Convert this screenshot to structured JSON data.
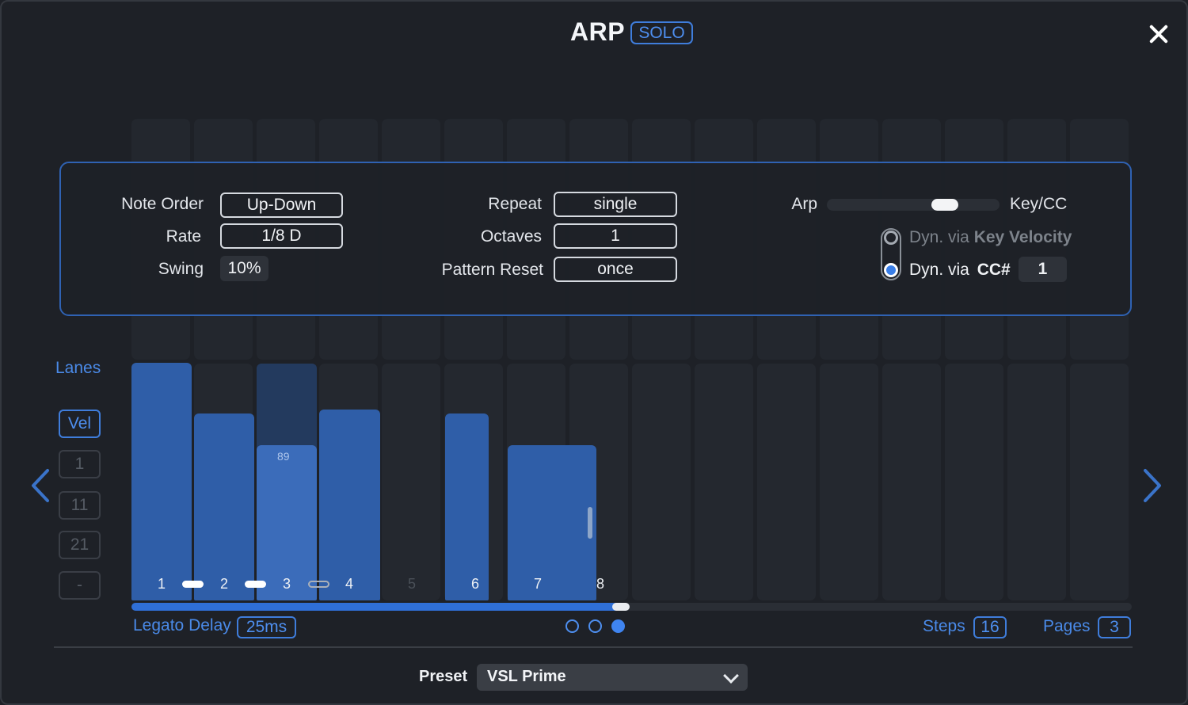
{
  "header": {
    "title": "ARP",
    "solo_label": "SOLO"
  },
  "settings": {
    "note_order": {
      "label": "Note Order",
      "value": "Up-Down"
    },
    "rate": {
      "label": "Rate",
      "value": "1/8 D"
    },
    "swing": {
      "label": "Swing",
      "value": "10%"
    },
    "repeat": {
      "label": "Repeat",
      "value": "single"
    },
    "octaves": {
      "label": "Octaves",
      "value": "1"
    },
    "pattern_reset": {
      "label": "Pattern Reset",
      "value": "once"
    },
    "mode": {
      "left_label": "Arp",
      "right_label": "Key/CC",
      "position": 0.72
    },
    "dyn_key": {
      "prefix": "Dyn. via ",
      "bold": "Key Velocity",
      "selected": false
    },
    "dyn_cc": {
      "prefix": "Dyn. via ",
      "bold": "CC#",
      "value": "1",
      "selected": true
    }
  },
  "lanes": {
    "title": "Lanes",
    "items": [
      "Vel",
      "1",
      "11",
      "21",
      "-"
    ],
    "active": 0
  },
  "steps": {
    "numbers": [
      "1",
      "2",
      "3",
      "4",
      "5",
      "6",
      "7",
      "8"
    ],
    "velocity_label": "89"
  },
  "footer": {
    "legato_label": "Legato Delay",
    "legato_value": "25ms",
    "steps_label": "Steps",
    "steps_value": "16",
    "pages_label": "Pages",
    "pages_value": "3",
    "active_page": 3,
    "progress": 0.49
  },
  "preset": {
    "label": "Preset",
    "value": "VSL Prime"
  },
  "colors": {
    "accent": "#3f7ddb",
    "bar": "#2f5ea8",
    "background": "#1e2127"
  },
  "icons": [
    "close-icon",
    "chevron-left-icon",
    "chevron-right-icon",
    "chevron-down-icon"
  ]
}
